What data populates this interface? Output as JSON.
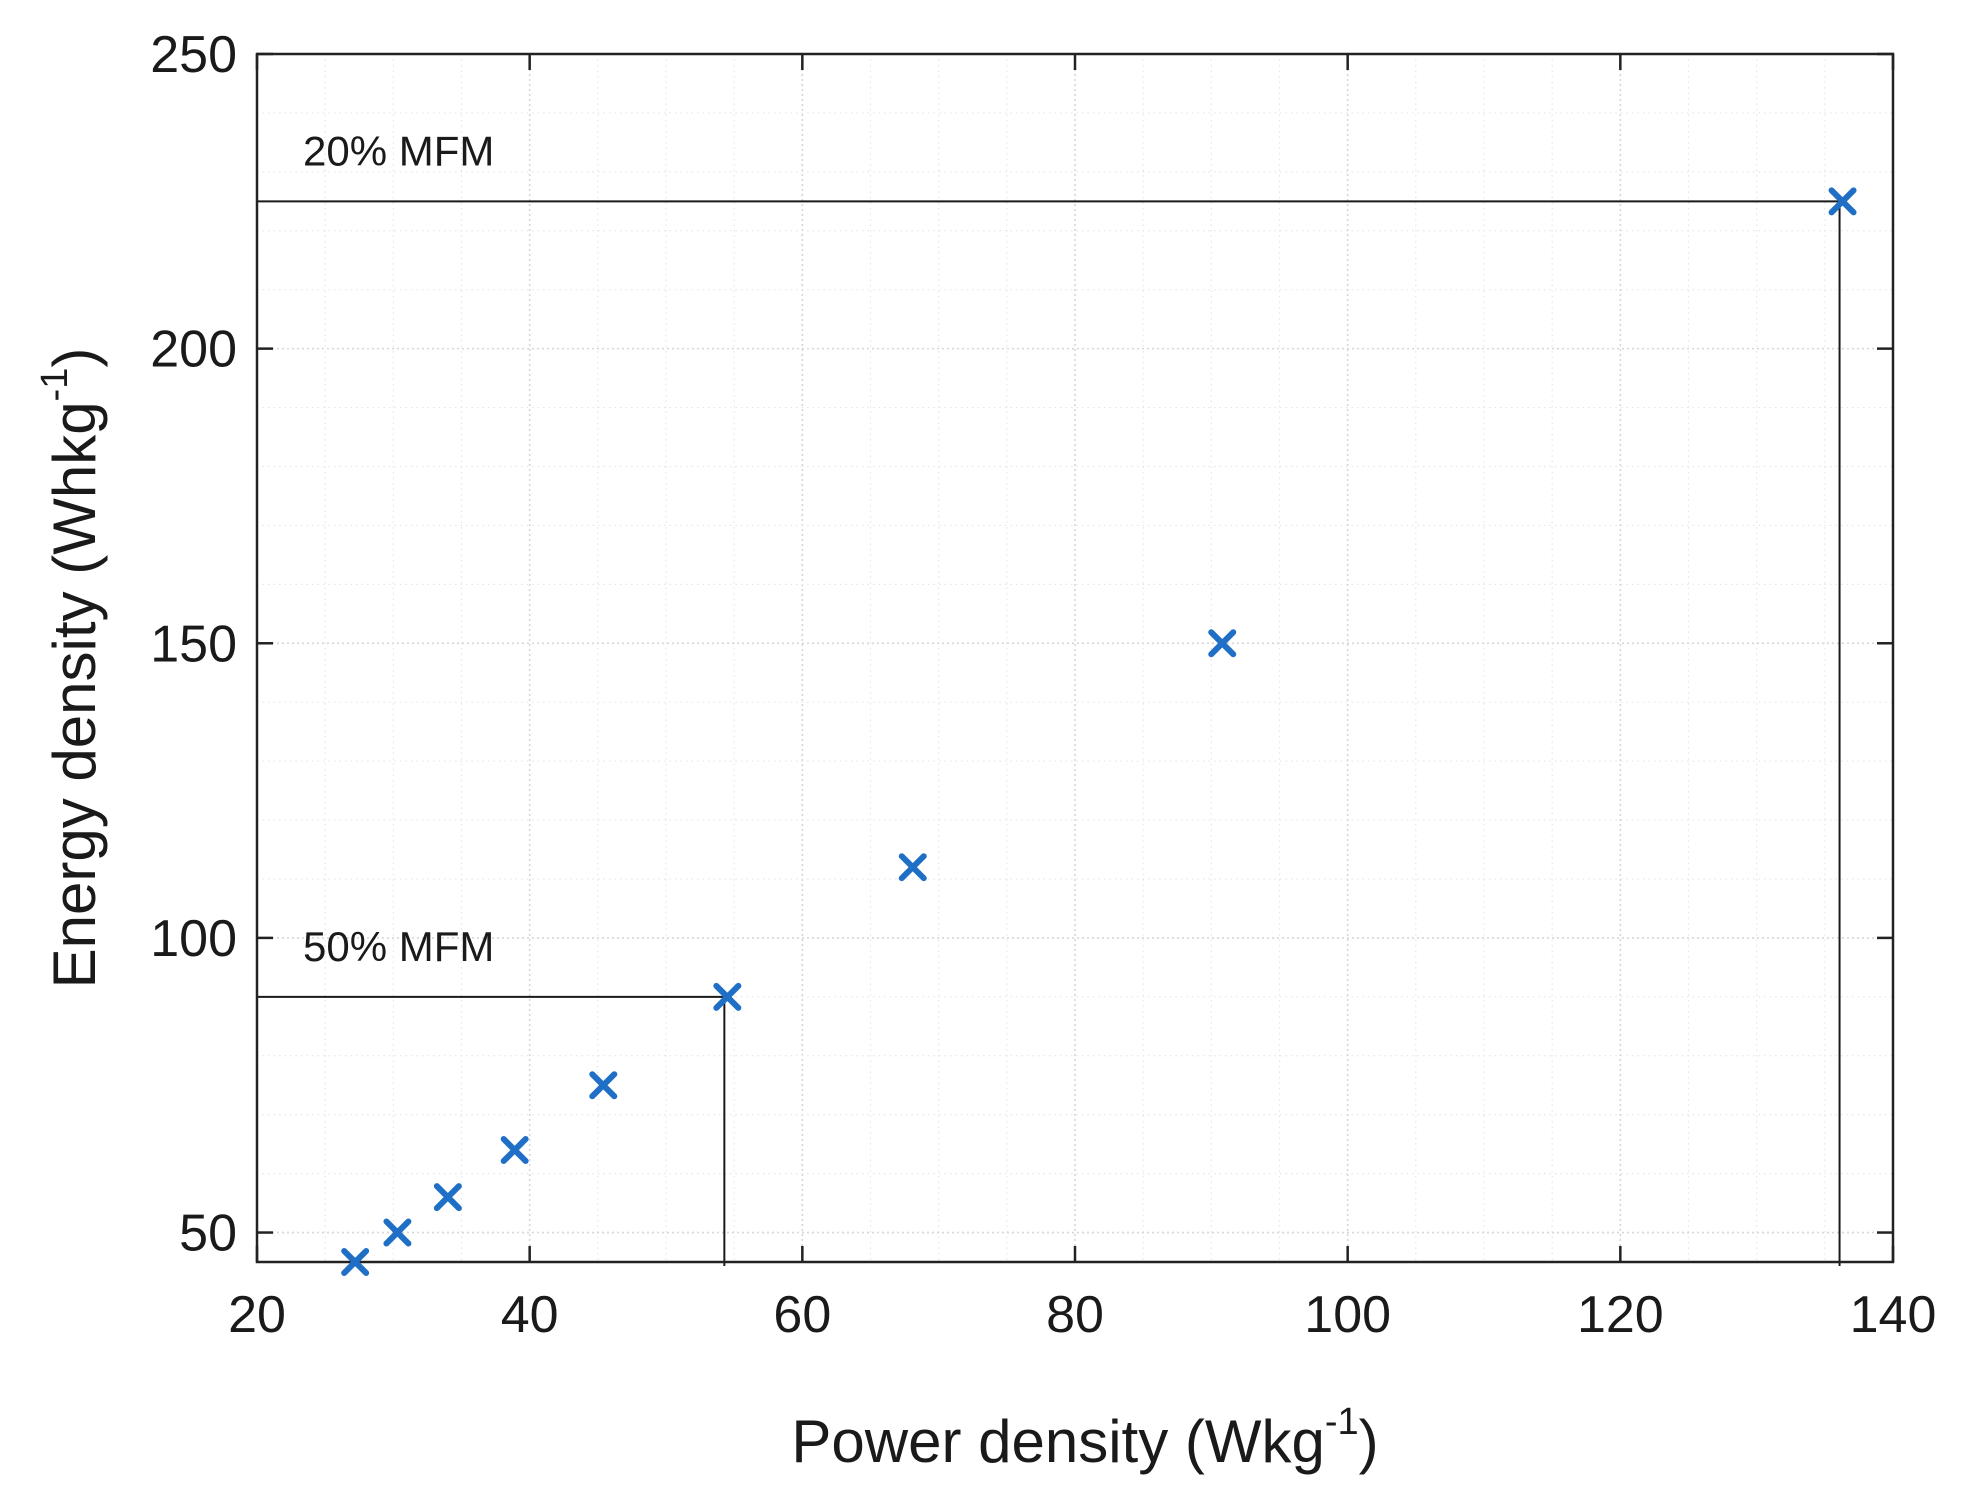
{
  "chart_data": {
    "type": "scatter",
    "title": "",
    "xlabel": "Power density (Wkg",
    "xlabel_sup": "-1",
    "xlabel_close": ")",
    "ylabel": "Energy density (Whkg",
    "ylabel_sup": "-1",
    "ylabel_close": ")",
    "xlim": [
      20,
      140
    ],
    "ylim": [
      45,
      250
    ],
    "xticks": [
      20,
      40,
      60,
      80,
      100,
      120,
      140
    ],
    "yticks": [
      50,
      100,
      150,
      200,
      250
    ],
    "xtick_labels": [
      "20",
      "40",
      "60",
      "80",
      "100",
      "120",
      "140"
    ],
    "ytick_labels": [
      "50",
      "100",
      "150",
      "200",
      "250"
    ],
    "grid": true,
    "marker": "x",
    "marker_color": "#1f6fc6",
    "series": [
      {
        "name": "",
        "x": [
          27.2,
          30.3,
          34.0,
          38.9,
          45.4,
          54.5,
          68.1,
          90.8,
          136.3
        ],
        "y": [
          45,
          50,
          56,
          64,
          75,
          90,
          112,
          150,
          225
        ]
      }
    ],
    "annotations": [
      {
        "text": "20% MFM",
        "x": 136.3,
        "y": 225
      },
      {
        "text": "50% MFM",
        "x": 54.5,
        "y": 90
      }
    ]
  }
}
